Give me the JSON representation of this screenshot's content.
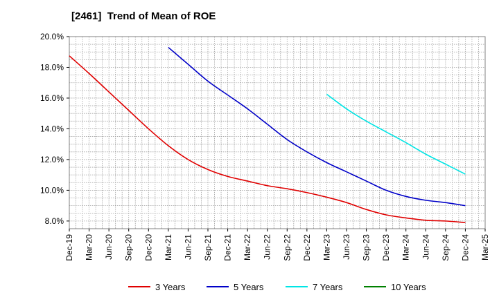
{
  "chart_data": {
    "type": "line",
    "title": "[2461]  Trend of Mean of ROE",
    "xlabel": "",
    "ylabel": "",
    "categories": [
      "Dec-19",
      "Mar-20",
      "Jun-20",
      "Sep-20",
      "Dec-20",
      "Mar-21",
      "Jun-21",
      "Sep-21",
      "Dec-21",
      "Mar-22",
      "Jun-22",
      "Sep-22",
      "Dec-22",
      "Mar-23",
      "Jun-23",
      "Sep-23",
      "Dec-23",
      "Mar-24",
      "Jun-24",
      "Sep-24",
      "Dec-24",
      "Mar-25"
    ],
    "ylim": [
      7.5,
      20.0
    ],
    "yticks": [
      "8.0%",
      "10.0%",
      "12.0%",
      "14.0%",
      "16.0%",
      "18.0%",
      "20.0%"
    ],
    "ytick_values": [
      8,
      10,
      12,
      14,
      16,
      18,
      20
    ],
    "grid": true,
    "legend_position": "bottom",
    "series": [
      {
        "name": "3 Years",
        "color": "#e00000",
        "values": [
          18.75,
          17.6,
          16.4,
          15.2,
          14.0,
          12.9,
          12.0,
          11.35,
          10.9,
          10.6,
          10.3,
          10.1,
          9.85,
          9.55,
          9.2,
          8.75,
          8.4,
          8.2,
          8.05,
          8.0,
          7.9,
          7.88
        ]
      },
      {
        "name": "5 Years",
        "color": "#0000c8",
        "values": [
          null,
          null,
          null,
          null,
          null,
          19.3,
          18.2,
          17.1,
          16.2,
          15.3,
          14.3,
          13.3,
          12.5,
          11.8,
          11.2,
          10.6,
          10.0,
          9.6,
          9.35,
          9.2,
          9.0,
          8.8
        ]
      },
      {
        "name": "7 Years",
        "color": "#00e5e5",
        "values": [
          null,
          null,
          null,
          null,
          null,
          null,
          null,
          null,
          null,
          null,
          null,
          null,
          null,
          16.25,
          15.3,
          14.5,
          13.8,
          13.1,
          12.35,
          11.7,
          11.05,
          10.6
        ]
      },
      {
        "name": "10 Years",
        "color": "#008000",
        "values": [
          null,
          null,
          null,
          null,
          null,
          null,
          null,
          null,
          null,
          null,
          null,
          null,
          null,
          null,
          null,
          null,
          null,
          null,
          null,
          null,
          null,
          null
        ]
      }
    ]
  }
}
